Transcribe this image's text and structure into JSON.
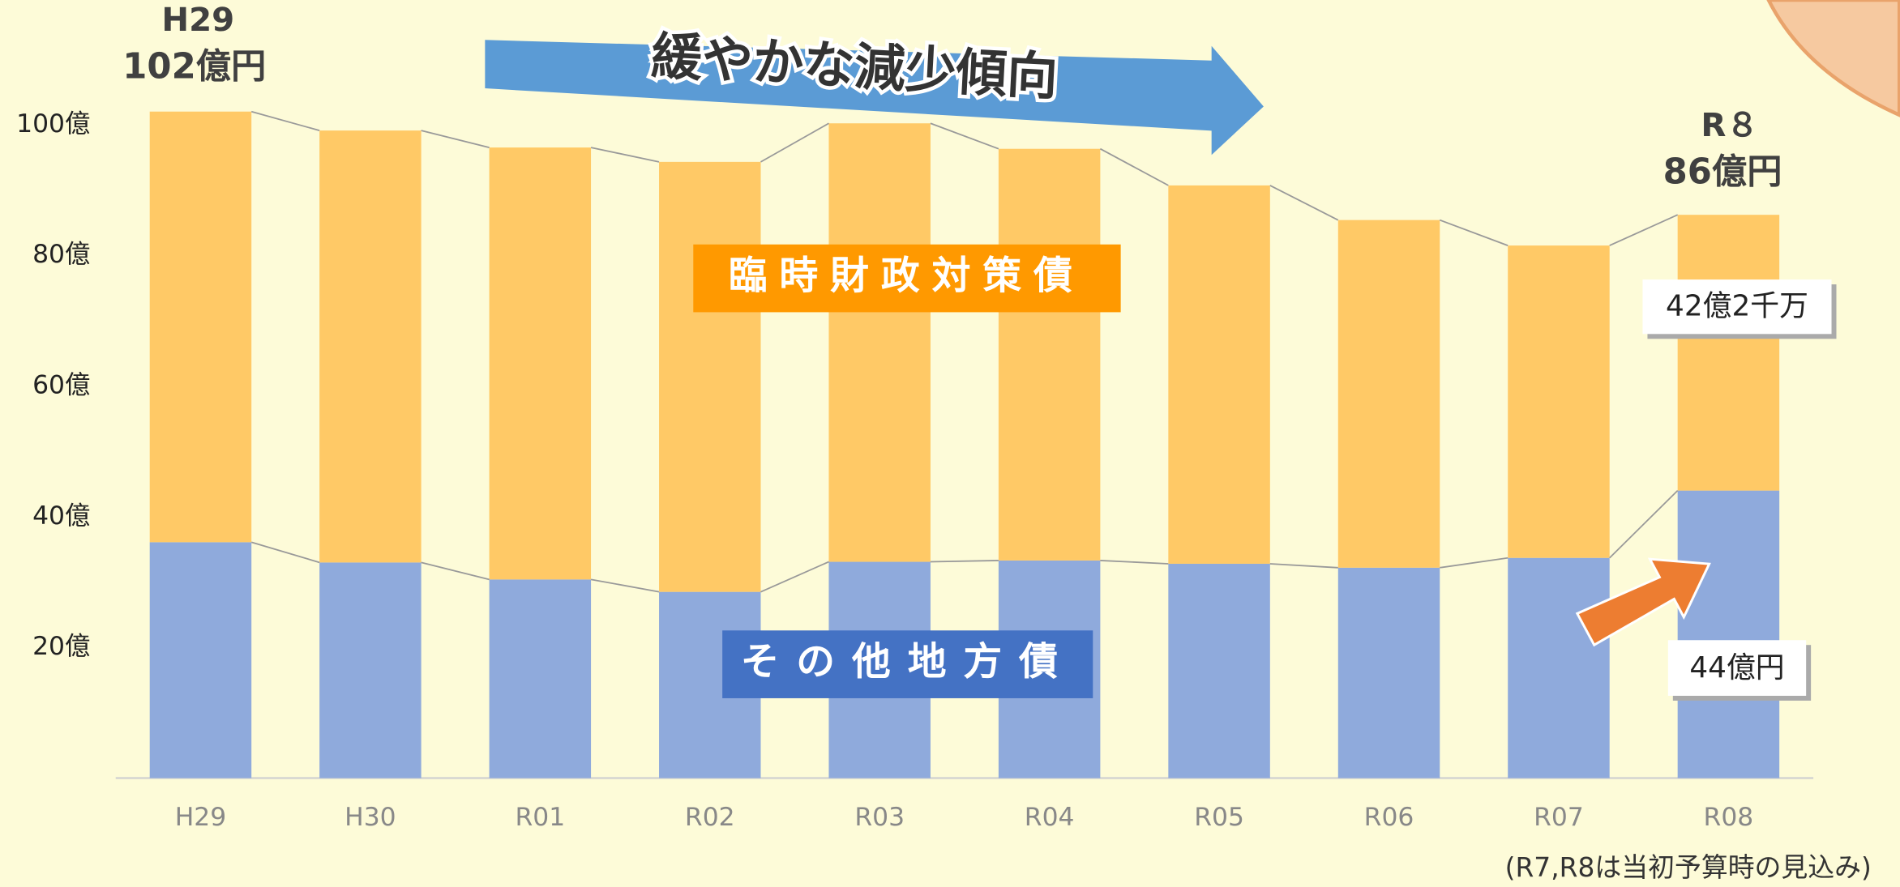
{
  "chart_data": {
    "type": "stacked_bar",
    "categories": [
      "H29",
      "H30",
      "R01",
      "R02",
      "R03",
      "R04",
      "R05",
      "R06",
      "R07",
      "R08"
    ],
    "series": [
      {
        "name": "その他地方債",
        "color": "#8faadc",
        "values": [
          36.1,
          33.0,
          30.4,
          28.5,
          33.1,
          33.3,
          32.8,
          32.2,
          33.7,
          44
        ],
        "value_labels": [
          null,
          null,
          null,
          null,
          null,
          null,
          null,
          null,
          null,
          "44億円"
        ]
      },
      {
        "name": "臨時財政対策債",
        "color": "#ffc966",
        "values": [
          65.9,
          66.1,
          66.1,
          65.8,
          67.1,
          63.0,
          57.9,
          53.2,
          47.8,
          42.2
        ],
        "value_labels": [
          null,
          null,
          null,
          null,
          null,
          null,
          null,
          null,
          null,
          "42億2千万"
        ]
      }
    ],
    "ylim": [
      0,
      110
    ],
    "yticks": [
      {
        "value": 20,
        "label": "20億"
      },
      {
        "value": 40,
        "label": "40億"
      },
      {
        "value": 60,
        "label": "60億"
      },
      {
        "value": 80,
        "label": "80億"
      },
      {
        "value": 100,
        "label": "100億"
      }
    ],
    "grid": false,
    "annotations": [
      "H29",
      "102億円",
      "R８",
      "86億円",
      "緩やかな減少傾向",
      "(R7,R8は当初予算時の見込み)"
    ]
  }
}
